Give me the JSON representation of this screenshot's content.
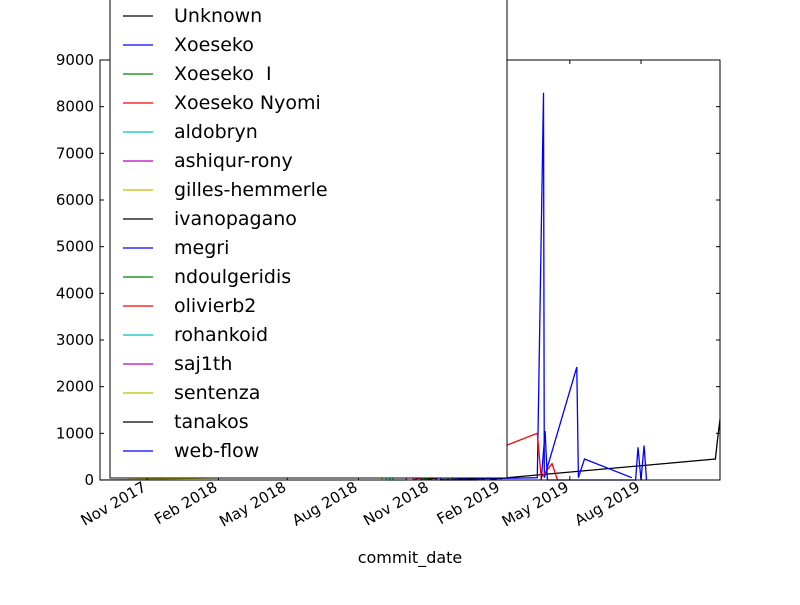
{
  "chart_data": {
    "type": "line",
    "title": "",
    "xlabel": "commit_date",
    "ylabel": "",
    "x_range": [
      "2017-09-01",
      "2019-11-11"
    ],
    "y_range": [
      0,
      9000
    ],
    "y_ticks": [
      0,
      1000,
      2000,
      3000,
      4000,
      5000,
      6000,
      7000,
      8000,
      9000
    ],
    "x_ticks": [
      {
        "date": "2017-11-01",
        "label": "Nov 2017"
      },
      {
        "date": "2018-02-01",
        "label": "Feb 2018"
      },
      {
        "date": "2018-05-01",
        "label": "May 2018"
      },
      {
        "date": "2018-08-01",
        "label": "Aug 2018"
      },
      {
        "date": "2018-11-01",
        "label": "Nov 2018"
      },
      {
        "date": "2019-02-01",
        "label": "Feb 2019"
      },
      {
        "date": "2019-05-01",
        "label": "May 2019"
      },
      {
        "date": "2019-08-01",
        "label": "Aug 2019"
      }
    ],
    "grid": false,
    "legend_position": "upper-left",
    "series": [
      {
        "name": "Unknown",
        "color": "#000000",
        "points": [
          [
            "2018-10-20",
            0
          ],
          [
            "2018-11-20",
            60
          ],
          [
            "2019-01-01",
            120
          ],
          [
            "2019-01-20",
            20
          ],
          [
            "2019-11-05",
            450
          ],
          [
            "2019-11-08",
            900
          ],
          [
            "2019-11-11",
            1300
          ]
        ]
      },
      {
        "name": "Xoeseko",
        "color": "#0000ff",
        "points": [
          [
            "2018-10-25",
            0
          ],
          [
            "2018-11-10",
            200
          ],
          [
            "2018-11-15",
            10
          ],
          [
            "2019-03-20",
            50
          ],
          [
            "2019-03-28",
            8300
          ],
          [
            "2019-03-29",
            50
          ],
          [
            "2019-05-10",
            2420
          ],
          [
            "2019-05-12",
            50
          ],
          [
            "2019-05-20",
            450
          ],
          [
            "2019-07-20",
            50
          ]
        ]
      },
      {
        "name": "Xoeseko  I",
        "color": "#008000",
        "points": [
          [
            "2018-10-15",
            0
          ],
          [
            "2018-10-20",
            300
          ],
          [
            "2018-10-22",
            10
          ],
          [
            "2018-11-25",
            100
          ],
          [
            "2018-12-01",
            0
          ]
        ]
      },
      {
        "name": "Xoeseko Nyomi",
        "color": "#ff0000",
        "points": [
          [
            "2018-10-10",
            0
          ],
          [
            "2018-11-01",
            100
          ],
          [
            "2019-03-20",
            1000
          ],
          [
            "2019-03-25",
            50
          ],
          [
            "2019-04-08",
            350
          ],
          [
            "2019-04-15",
            0
          ]
        ]
      },
      {
        "name": "aldobryn",
        "color": "#00bfbf",
        "points": [
          [
            "2018-09-05",
            200
          ],
          [
            "2018-09-06",
            0
          ],
          [
            "2018-09-25",
            0
          ],
          [
            "2018-10-01",
            0
          ]
        ]
      },
      {
        "name": "ashiqur-rony",
        "color": "#bf00bf",
        "points": [
          [
            "2018-10-01",
            0
          ],
          [
            "2018-10-08",
            200
          ],
          [
            "2018-10-10",
            20
          ]
        ]
      },
      {
        "name": "gilles-hemmerle",
        "color": "#bfbf00",
        "points": [
          [
            "2017-09-01",
            0
          ],
          [
            "2018-08-28",
            110
          ],
          [
            "2018-09-01",
            10
          ]
        ]
      },
      {
        "name": "ivanopagano",
        "color": "#000000",
        "points": [
          [
            "2018-12-20",
            0
          ],
          [
            "2019-01-05",
            80
          ],
          [
            "2019-01-10",
            0
          ]
        ]
      },
      {
        "name": "megri",
        "color": "#0000ff",
        "points": [
          [
            "2019-03-25",
            0
          ],
          [
            "2019-03-30",
            1050
          ],
          [
            "2019-04-02",
            0
          ],
          [
            "2019-07-25",
            0
          ],
          [
            "2019-07-28",
            700
          ],
          [
            "2019-08-01",
            0
          ],
          [
            "2019-08-05",
            740
          ],
          [
            "2019-08-08",
            0
          ]
        ]
      },
      {
        "name": "ndoulgeridis",
        "color": "#008000",
        "points": [
          [
            "2018-10-20",
            0
          ],
          [
            "2018-10-25",
            400
          ],
          [
            "2018-10-28",
            0
          ]
        ]
      },
      {
        "name": "olivierb2",
        "color": "#ff0000",
        "points": [
          [
            "2018-11-01",
            0
          ],
          [
            "2018-11-05",
            250
          ],
          [
            "2018-11-08",
            0
          ]
        ]
      },
      {
        "name": "rohankoid",
        "color": "#00bfbf",
        "points": [
          [
            "2018-09-10",
            0
          ],
          [
            "2018-09-12",
            150
          ],
          [
            "2018-09-15",
            0
          ]
        ]
      },
      {
        "name": "saj1th",
        "color": "#bf00bf",
        "points": [
          [
            "2018-10-15",
            0
          ],
          [
            "2018-10-18",
            120
          ],
          [
            "2018-10-20",
            0
          ]
        ]
      },
      {
        "name": "sentenza",
        "color": "#bfbf00",
        "points": [
          [
            "2018-11-20",
            0
          ],
          [
            "2018-11-25",
            100
          ],
          [
            "2018-11-28",
            0
          ]
        ]
      },
      {
        "name": "tanakos",
        "color": "#000000",
        "points": [
          [
            "2018-12-10",
            0
          ],
          [
            "2018-12-15",
            200
          ],
          [
            "2018-12-18",
            0
          ]
        ]
      },
      {
        "name": "web-flow",
        "color": "#0000ff",
        "points": [
          [
            "2018-11-10",
            0
          ],
          [
            "2018-11-12",
            280
          ],
          [
            "2018-11-15",
            0
          ],
          [
            "2019-01-01",
            0
          ],
          [
            "2019-01-05",
            180
          ],
          [
            "2019-01-08",
            0
          ]
        ]
      }
    ]
  }
}
